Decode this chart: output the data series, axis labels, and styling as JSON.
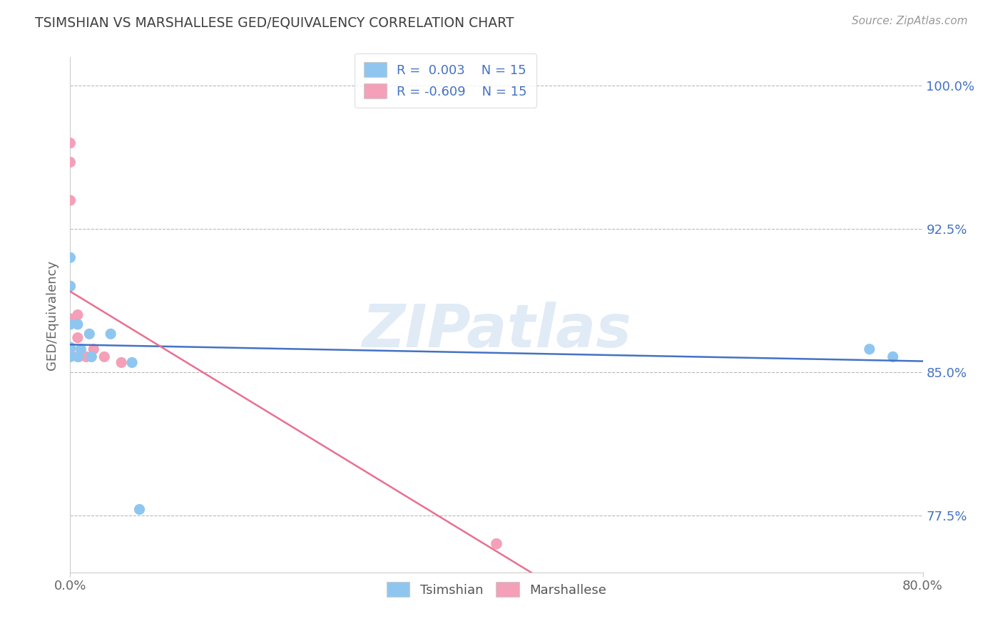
{
  "title": "TSIMSHIAN VS MARSHALLESE GED/EQUIVALENCY CORRELATION CHART",
  "source": "Source: ZipAtlas.com",
  "ylabel": "GED/Equivalency",
  "xlim": [
    0.0,
    0.8
  ],
  "ylim": [
    0.745,
    1.015
  ],
  "xtick_labels": [
    "0.0%",
    "80.0%"
  ],
  "xtick_values": [
    0.0,
    0.8
  ],
  "ytick_labels": [
    "77.5%",
    "85.0%",
    "92.5%",
    "100.0%"
  ],
  "ytick_values": [
    0.775,
    0.85,
    0.925,
    1.0
  ],
  "tsimshian_x": [
    0.0,
    0.0,
    0.0,
    0.0,
    0.0,
    0.007,
    0.007,
    0.01,
    0.018,
    0.02,
    0.038,
    0.058,
    0.065,
    0.75,
    0.772
  ],
  "tsimshian_y": [
    0.91,
    0.895,
    0.875,
    0.863,
    0.858,
    0.875,
    0.858,
    0.862,
    0.87,
    0.858,
    0.87,
    0.855,
    0.778,
    0.862,
    0.858
  ],
  "marshallese_x": [
    0.0,
    0.0,
    0.0,
    0.0,
    0.0,
    0.0,
    0.007,
    0.007,
    0.008,
    0.015,
    0.022,
    0.032,
    0.048,
    0.4,
    0.4
  ],
  "marshallese_y": [
    0.97,
    0.96,
    0.94,
    0.895,
    0.878,
    0.862,
    0.88,
    0.868,
    0.858,
    0.858,
    0.862,
    0.858,
    0.855,
    0.76,
    0.76
  ],
  "tsimshian_color": "#8ec6f0",
  "marshallese_color": "#f4a0b8",
  "tsimshian_line_color": "#4472c4",
  "marshallese_line_color": "#e87090",
  "R_tsimshian": "0.003",
  "R_marshallese": "-0.609",
  "N_tsimshian": 15,
  "N_marshallese": 15,
  "watermark": "ZIPatlas",
  "legend_labels": [
    "Tsimshian",
    "Marshallese"
  ],
  "background_color": "#ffffff",
  "grid_color": "#b8b8b8",
  "right_label_color": "#4472c4",
  "title_color": "#404040"
}
